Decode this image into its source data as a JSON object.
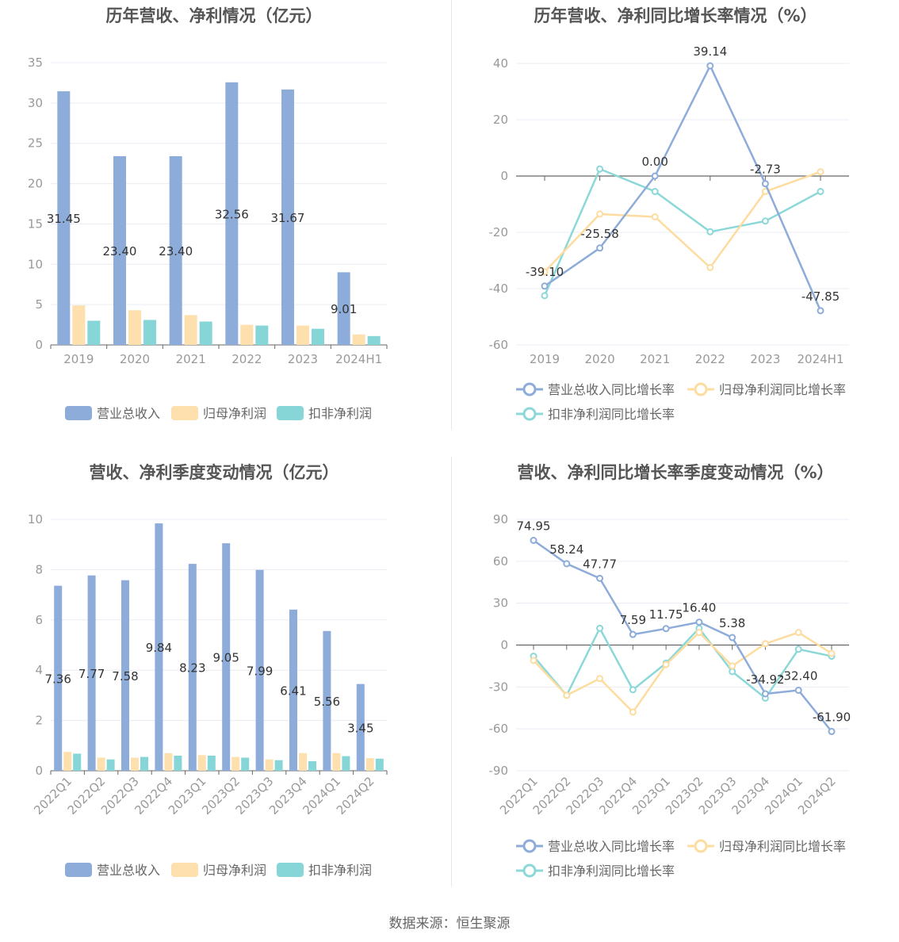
{
  "colors": {
    "revenue": "#8eacd9",
    "net_profit": "#fde0ad",
    "deducted_profit": "#86d6d8",
    "line_revenue": "#8eacd9",
    "line_net": "#fddc9f",
    "line_deducted": "#8cd8d9",
    "axis": "#999999",
    "grid": "#e9ecf3"
  },
  "source": "数据来源：恒生聚源",
  "chart_data": [
    {
      "type": "bar",
      "title": "历年营收、净利情况（亿元）",
      "categories": [
        "2019",
        "2020",
        "2021",
        "2022",
        "2023",
        "2024H1"
      ],
      "ylim": [
        0,
        35
      ],
      "yticks": [
        0,
        5,
        10,
        15,
        20,
        25,
        30,
        35
      ],
      "series": [
        {
          "name": "营业总收入",
          "values": [
            31.45,
            23.4,
            23.4,
            32.56,
            31.67,
            9.01
          ]
        },
        {
          "name": "归母净利润",
          "values": [
            4.9,
            4.3,
            3.7,
            2.5,
            2.4,
            1.3
          ]
        },
        {
          "name": "扣非净利润",
          "values": [
            3.0,
            3.1,
            2.9,
            2.4,
            2.0,
            1.1
          ]
        }
      ],
      "data_labels": [
        "31.45",
        "23.40",
        "23.40",
        "32.56",
        "31.67",
        "9.01"
      ],
      "legend": "bottom",
      "grid": true
    },
    {
      "type": "line",
      "title": "历年营收、净利同比增长率情况（%）",
      "categories": [
        "2019",
        "2020",
        "2021",
        "2022",
        "2023",
        "2024H1"
      ],
      "ylim": [
        -60,
        40
      ],
      "yticks": [
        -60,
        -40,
        -20,
        0,
        20,
        40
      ],
      "series": [
        {
          "name": "营业总收入同比增长率",
          "values": [
            -39.1,
            -25.58,
            0.0,
            39.14,
            -2.73,
            -47.85
          ]
        },
        {
          "name": "归母净利润同比增长率",
          "values": [
            -34,
            -13.5,
            -14.5,
            -32.5,
            -5.5,
            1.5
          ]
        },
        {
          "name": "扣非净利润同比增长率",
          "values": [
            -42.5,
            2.5,
            -5.5,
            -19.8,
            -16,
            -5.5
          ]
        }
      ],
      "data_labels": [
        "-39.10",
        "-25.58",
        "0.00",
        "39.14",
        "-2.73",
        "-47.85"
      ],
      "legend": "bottom",
      "grid": true
    },
    {
      "type": "bar",
      "title": "营收、净利季度变动情况（亿元）",
      "categories": [
        "2022Q1",
        "2022Q2",
        "2022Q3",
        "2022Q4",
        "2023Q1",
        "2023Q2",
        "2023Q3",
        "2023Q4",
        "2024Q1",
        "2024Q2"
      ],
      "ylim": [
        0,
        10
      ],
      "yticks": [
        0,
        2,
        4,
        6,
        8,
        10
      ],
      "series": [
        {
          "name": "营业总收入",
          "values": [
            7.36,
            7.77,
            7.58,
            9.84,
            8.23,
            9.05,
            7.99,
            6.41,
            5.56,
            3.45
          ]
        },
        {
          "name": "归母净利润",
          "values": [
            0.75,
            0.52,
            0.52,
            0.7,
            0.62,
            0.55,
            0.45,
            0.7,
            0.7,
            0.5
          ]
        },
        {
          "name": "扣非净利润",
          "values": [
            0.68,
            0.45,
            0.55,
            0.6,
            0.6,
            0.52,
            0.42,
            0.38,
            0.58,
            0.48
          ]
        }
      ],
      "data_labels": [
        "7.36",
        "7.77",
        "7.58",
        "9.84",
        "8.23",
        "9.05",
        "7.99",
        "6.41",
        "5.56",
        "3.45"
      ],
      "legend": "bottom",
      "grid": true
    },
    {
      "type": "line",
      "title": "营收、净利同比增长率季度变动情况（%）",
      "categories": [
        "2022Q1",
        "2022Q2",
        "2022Q3",
        "2022Q4",
        "2023Q1",
        "2023Q2",
        "2023Q3",
        "2023Q4",
        "2024Q1",
        "2024Q2"
      ],
      "ylim": [
        -90,
        90
      ],
      "yticks": [
        -90,
        -60,
        -30,
        0,
        30,
        60,
        90
      ],
      "series": [
        {
          "name": "营业总收入同比增长率",
          "values": [
            74.95,
            58.24,
            47.77,
            7.59,
            11.75,
            16.4,
            5.38,
            -34.92,
            -32.4,
            -61.9
          ]
        },
        {
          "name": "归母净利润同比增长率",
          "values": [
            -11,
            -36,
            -24,
            -48,
            -14,
            9,
            -15,
            1,
            9,
            -6
          ]
        },
        {
          "name": "扣非净利润同比增长率",
          "values": [
            -8,
            -36,
            12,
            -32,
            -13,
            12,
            -19,
            -38,
            -3,
            -8
          ]
        }
      ],
      "data_labels": [
        "74.95",
        "58.24",
        "47.77",
        "7.59",
        "11.75",
        "16.40",
        "5.38",
        "-34.92",
        "-32.40",
        "-61.90"
      ],
      "legend": "bottom",
      "grid": true
    }
  ]
}
